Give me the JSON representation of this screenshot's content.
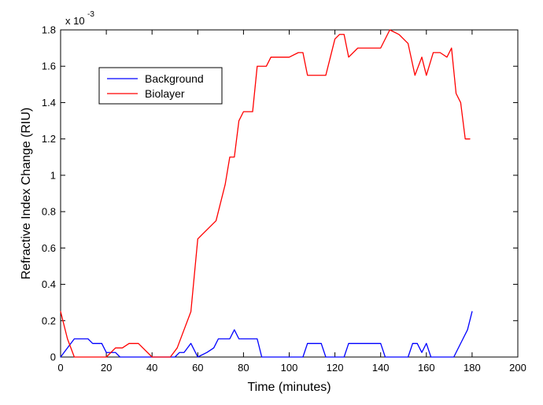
{
  "chart_data": {
    "type": "line",
    "title": "",
    "xlabel": "Time (minutes)",
    "ylabel": "Refractive Index Change (RIU)",
    "multiplier": {
      "prefix": "x 10",
      "exponent": "-3"
    },
    "xlim": [
      0,
      200
    ],
    "ylim": [
      0,
      1.8
    ],
    "x_ticks": [
      0,
      20,
      40,
      60,
      80,
      100,
      120,
      140,
      160,
      180,
      200
    ],
    "y_ticks": [
      0,
      0.2,
      0.4,
      0.6,
      0.8,
      1,
      1.2,
      1.4,
      1.6,
      1.8
    ],
    "x_tick_labels": [
      "0",
      "20",
      "40",
      "60",
      "80",
      "100",
      "120",
      "140",
      "160",
      "180",
      "200"
    ],
    "y_tick_labels": [
      "0",
      "0.2",
      "0.4",
      "0.6",
      "0.8",
      "1",
      "1.2",
      "1.4",
      "1.6",
      "1.8"
    ],
    "grid": false,
    "legend_position": "top-left",
    "series": [
      {
        "name": "Background",
        "color": "#0000ff",
        "x": [
          0,
          6,
          12,
          14,
          18,
          20,
          24,
          26,
          28,
          30,
          36,
          40,
          48,
          50,
          52,
          54,
          57,
          60,
          64,
          67,
          69,
          71,
          74,
          76,
          78,
          80,
          82,
          86,
          88,
          98,
          102,
          104,
          106,
          108,
          110,
          114,
          116,
          118,
          120,
          124,
          126,
          130,
          136,
          140,
          142,
          146,
          150,
          152,
          154,
          156,
          158,
          160,
          162,
          164,
          166,
          168,
          170,
          172,
          176,
          178,
          180
        ],
        "y": [
          0,
          0.1,
          0.1,
          0.075,
          0.075,
          0.025,
          0.025,
          0,
          0,
          0,
          0,
          0,
          0,
          0,
          0.025,
          0.025,
          0.075,
          0,
          0.025,
          0.05,
          0.1,
          0.1,
          0.1,
          0.15,
          0.1,
          0.1,
          0.1,
          0.1,
          0,
          0,
          0,
          0,
          0,
          0.075,
          0.075,
          0.075,
          0,
          0,
          0,
          0,
          0.075,
          0.075,
          0.075,
          0.075,
          0,
          0,
          0,
          0,
          0.075,
          0.075,
          0.025,
          0.075,
          0,
          0,
          0,
          0,
          0,
          0,
          0.1,
          0.15,
          0.25
        ]
      },
      {
        "name": "Biolayer",
        "color": "#ff0000",
        "x": [
          0,
          3,
          6,
          10,
          12,
          16,
          20,
          24,
          27,
          30,
          34,
          40,
          46,
          48,
          51,
          54,
          57,
          60,
          64,
          68,
          70,
          72,
          74,
          76,
          78,
          80,
          82,
          84,
          86,
          88,
          90,
          92,
          94,
          96,
          100,
          104,
          106,
          108,
          110,
          114,
          116,
          120,
          122,
          124,
          126,
          130,
          132,
          136,
          140,
          144,
          148,
          150,
          152,
          155,
          158,
          160,
          163,
          166,
          169,
          171,
          173,
          175,
          177,
          179
        ],
        "y": [
          0.25,
          0.1,
          0,
          0,
          0,
          0,
          0,
          0.05,
          0.05,
          0.075,
          0.075,
          0,
          0,
          0,
          0.05,
          0.15,
          0.25,
          0.65,
          0.7,
          0.75,
          0.85,
          0.95,
          1.1,
          1.1,
          1.3,
          1.35,
          1.35,
          1.35,
          1.6,
          1.6,
          1.6,
          1.65,
          1.65,
          1.65,
          1.65,
          1.675,
          1.675,
          1.55,
          1.55,
          1.55,
          1.55,
          1.75,
          1.775,
          1.775,
          1.65,
          1.7,
          1.7,
          1.7,
          1.7,
          1.8,
          1.775,
          1.75,
          1.725,
          1.55,
          1.65,
          1.55,
          1.675,
          1.675,
          1.65,
          1.7,
          1.45,
          1.4,
          1.2,
          1.2
        ]
      }
    ]
  }
}
